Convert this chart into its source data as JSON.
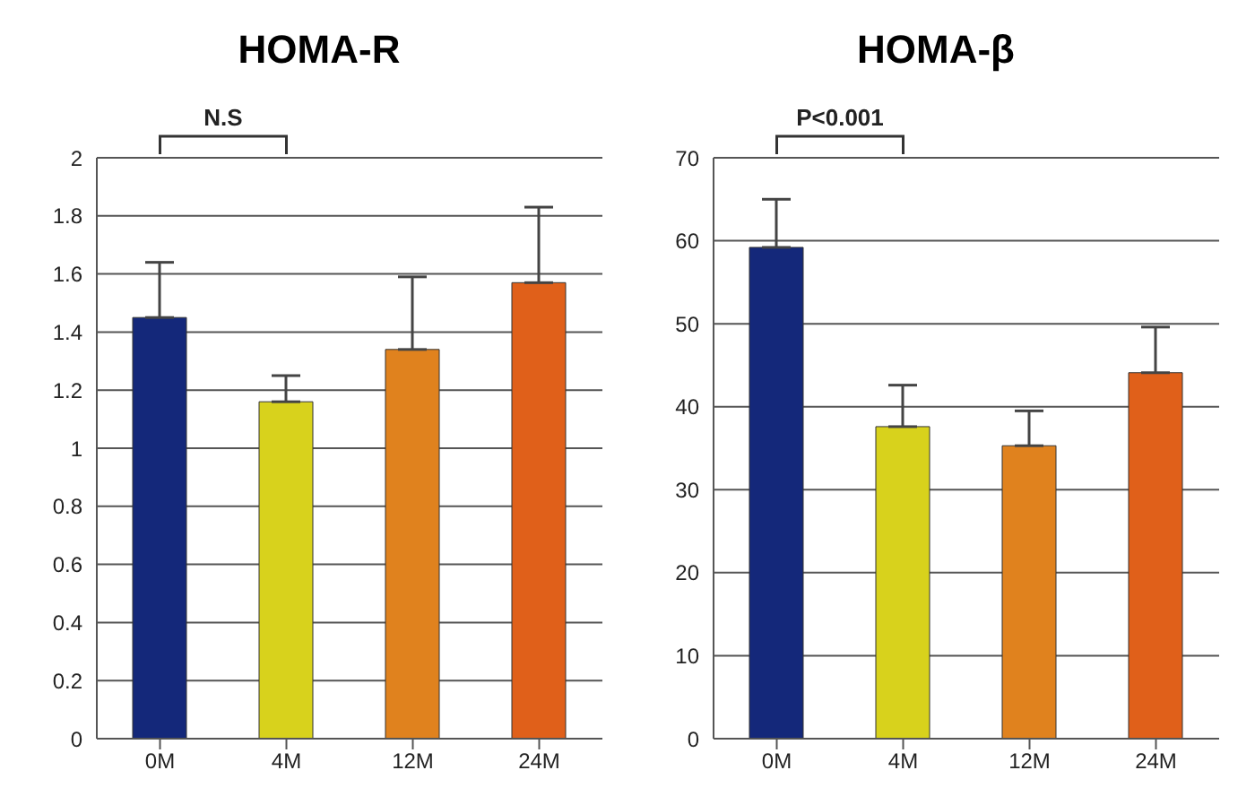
{
  "chart_data": [
    {
      "type": "bar",
      "title": "HOMA-R",
      "categories": [
        "0M",
        "4M",
        "12M",
        "24M"
      ],
      "values": [
        1.45,
        1.16,
        1.34,
        1.57
      ],
      "colors": [
        "#14287a",
        "#d8d21c",
        "#e0821e",
        "#e0601a"
      ],
      "errors": [
        [
          1.45,
          1.64
        ],
        [
          1.16,
          1.25
        ],
        [
          1.34,
          1.59
        ],
        [
          1.57,
          1.83
        ]
      ],
      "ylim": [
        0,
        2
      ],
      "yticks": [
        0,
        0.2,
        0.4,
        0.6,
        0.8,
        1,
        1.2,
        1.4,
        1.6,
        1.8,
        2
      ],
      "grid": "y",
      "annotations": [
        "N.S"
      ]
    },
    {
      "type": "bar",
      "title": "HOMA-β",
      "categories": [
        "0M",
        "4M",
        "12M",
        "24M"
      ],
      "values": [
        59.2,
        37.6,
        35.3,
        44.1
      ],
      "colors": [
        "#14287a",
        "#d8d21c",
        "#e0821e",
        "#e0601a"
      ],
      "errors": [
        [
          59.2,
          65
        ],
        [
          37.6,
          42.6
        ],
        [
          35.3,
          39.5
        ],
        [
          44.1,
          49.6
        ]
      ],
      "ylim": [
        0,
        70
      ],
      "yticks": [
        0,
        10,
        20,
        30,
        40,
        50,
        60,
        70
      ],
      "grid": "y",
      "annotations": [
        "P<0.001"
      ]
    }
  ]
}
